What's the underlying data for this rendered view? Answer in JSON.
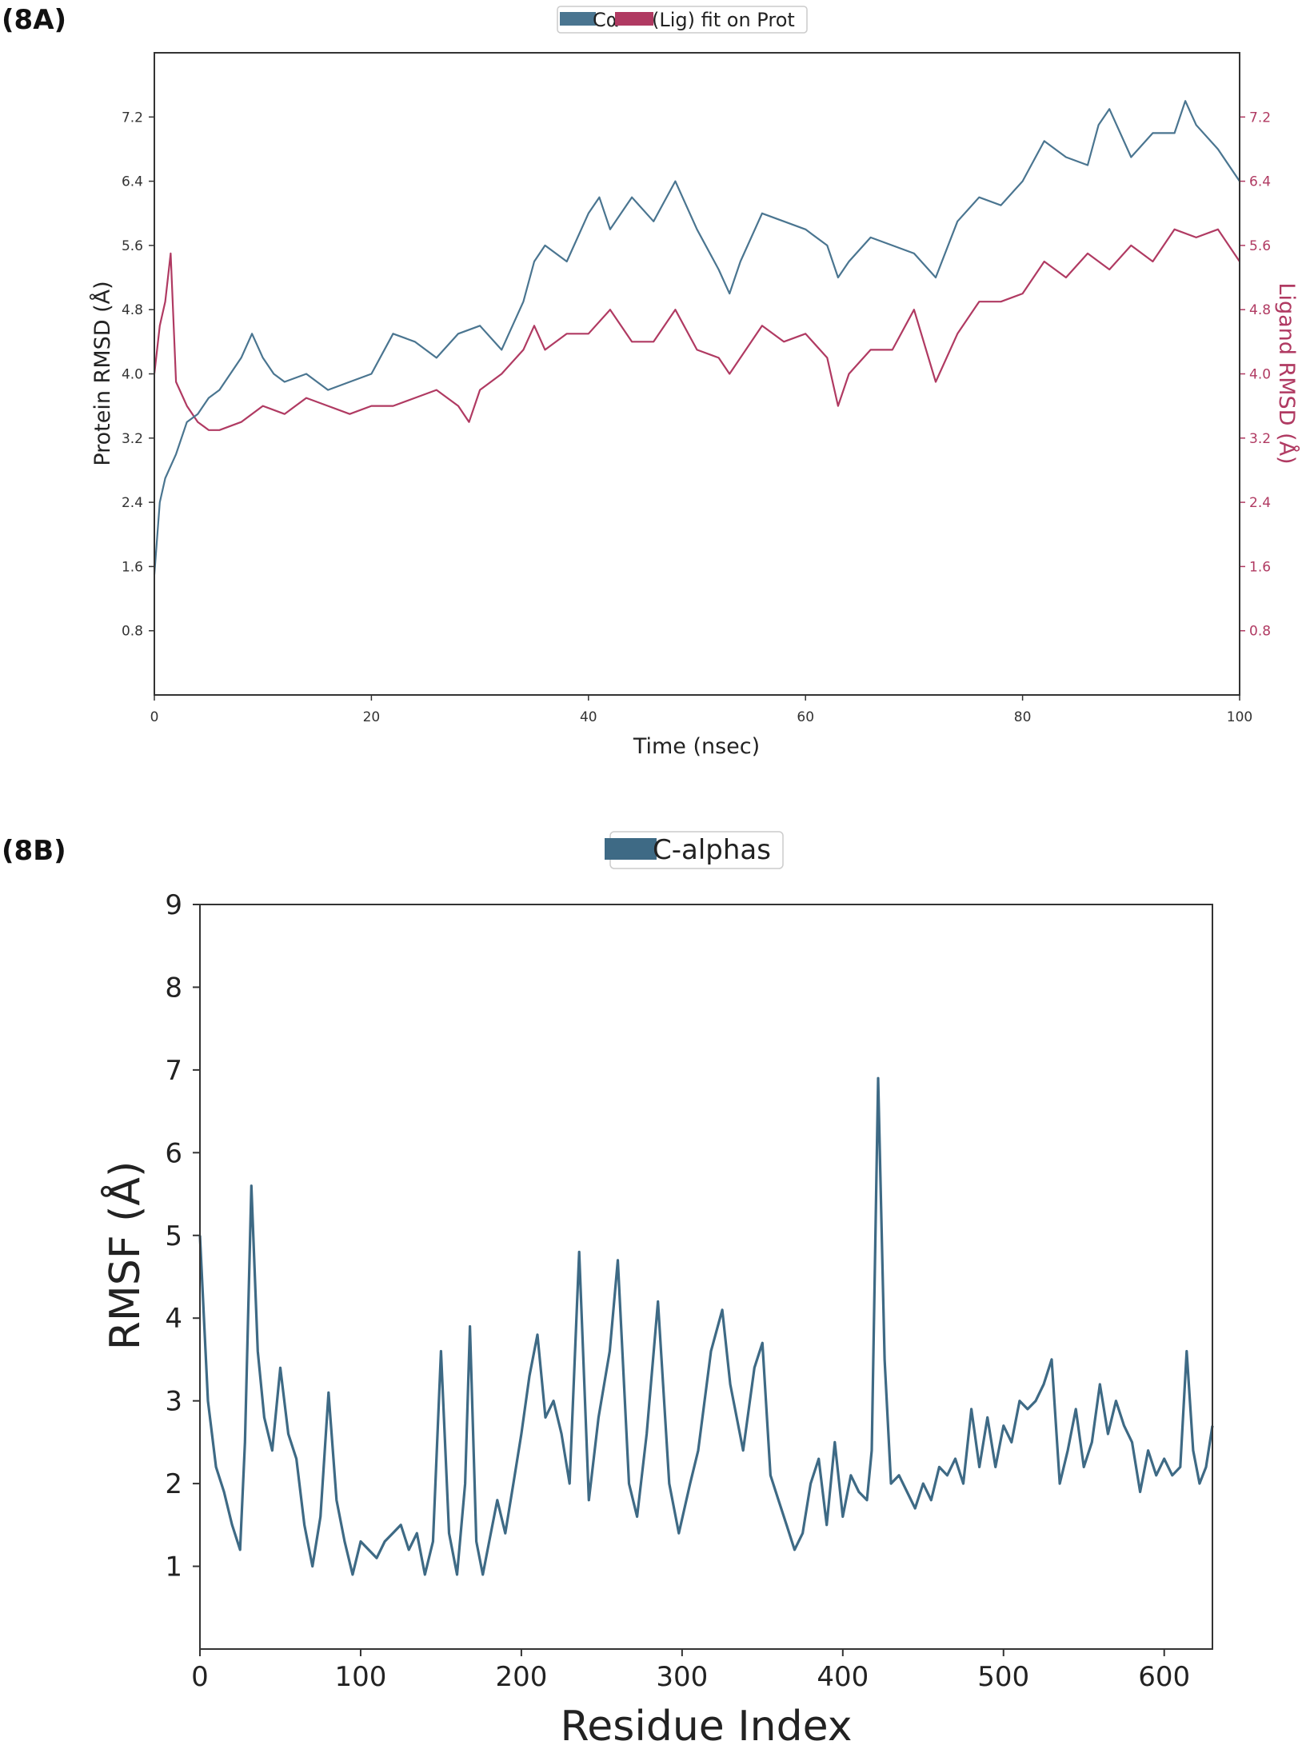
{
  "chart_data": [
    {
      "panel_label": "(8A)",
      "type": "line",
      "title": "",
      "legend": {
        "placement": "top-center",
        "entries": [
          {
            "name": "Cα",
            "color": "#4a7590"
          },
          {
            "name": "(Lig) fit on Prot",
            "color": "#b03a62"
          }
        ]
      },
      "xlabel": "Time (nsec)",
      "ylabel": "Protein RMSD (Å)",
      "ylabel_right": "Ligand RMSD (Å)",
      "xlim": [
        0,
        100
      ],
      "ylim": [
        0,
        8.0
      ],
      "xticks": [
        "0",
        "20",
        "40",
        "60",
        "80",
        "100"
      ],
      "xtick_values": [
        0,
        20,
        40,
        60,
        80,
        100
      ],
      "yticks": [
        "0.8",
        "1.6",
        "2.4",
        "3.2",
        "4.0",
        "4.8",
        "5.6",
        "6.4",
        "7.2"
      ],
      "ytick_values": [
        0.8,
        1.6,
        2.4,
        3.2,
        4.0,
        4.8,
        5.6,
        6.4,
        7.2
      ],
      "colors": {
        "protein": "#4a7590",
        "ligand": "#b03a62",
        "axis": "#333333"
      },
      "series": [
        {
          "name": "Protein Cα RMSD",
          "x": [
            0,
            0.5,
            1,
            2,
            3,
            4,
            5,
            6,
            8,
            9,
            10,
            11,
            12,
            14,
            16,
            18,
            20,
            22,
            24,
            26,
            28,
            30,
            32,
            34,
            35,
            36,
            38,
            40,
            41,
            42,
            44,
            46,
            48,
            50,
            52,
            53,
            54,
            56,
            58,
            60,
            62,
            63,
            64,
            66,
            68,
            70,
            72,
            74,
            76,
            78,
            80,
            82,
            84,
            86,
            87,
            88,
            90,
            92,
            94,
            95,
            96,
            98,
            100
          ],
          "y": [
            1.5,
            2.4,
            2.7,
            3.0,
            3.4,
            3.5,
            3.7,
            3.8,
            4.2,
            4.5,
            4.2,
            4.0,
            3.9,
            4.0,
            3.8,
            3.9,
            4.0,
            4.5,
            4.4,
            4.2,
            4.5,
            4.6,
            4.3,
            4.9,
            5.4,
            5.6,
            5.4,
            6.0,
            6.2,
            5.8,
            6.2,
            5.9,
            6.4,
            5.8,
            5.3,
            5.0,
            5.4,
            6.0,
            5.9,
            5.8,
            5.6,
            5.2,
            5.4,
            5.7,
            5.6,
            5.5,
            5.2,
            5.9,
            6.2,
            6.1,
            6.4,
            6.9,
            6.7,
            6.6,
            7.1,
            7.3,
            6.7,
            7.0,
            7.0,
            7.4,
            7.1,
            6.8,
            6.4
          ]
        },
        {
          "name": "Ligand RMSD",
          "x": [
            0,
            0.5,
            1,
            1.5,
            2,
            3,
            4,
            5,
            6,
            8,
            10,
            12,
            14,
            16,
            18,
            20,
            22,
            24,
            26,
            28,
            29,
            30,
            32,
            34,
            35,
            36,
            38,
            40,
            42,
            44,
            46,
            48,
            50,
            52,
            53,
            54,
            56,
            58,
            60,
            62,
            63,
            64,
            66,
            68,
            70,
            72,
            74,
            76,
            78,
            80,
            82,
            84,
            86,
            88,
            90,
            92,
            94,
            96,
            98,
            100
          ],
          "y": [
            4.0,
            4.6,
            4.9,
            5.5,
            3.9,
            3.6,
            3.4,
            3.3,
            3.3,
            3.4,
            3.6,
            3.5,
            3.7,
            3.6,
            3.5,
            3.6,
            3.6,
            3.7,
            3.8,
            3.6,
            3.4,
            3.8,
            4.0,
            4.3,
            4.6,
            4.3,
            4.5,
            4.5,
            4.8,
            4.4,
            4.4,
            4.8,
            4.3,
            4.2,
            4.0,
            4.2,
            4.6,
            4.4,
            4.5,
            4.2,
            3.6,
            4.0,
            4.3,
            4.3,
            4.8,
            3.9,
            4.5,
            4.9,
            4.9,
            5.0,
            5.4,
            5.2,
            5.5,
            5.3,
            5.6,
            5.4,
            5.8,
            5.7,
            5.8,
            5.4
          ]
        }
      ]
    },
    {
      "panel_label": "(8B)",
      "type": "line",
      "title": "",
      "legend": {
        "placement": "top-center",
        "entries": [
          {
            "name": "C-alphas",
            "color": "#3e6a85"
          }
        ]
      },
      "xlabel": "Residue Index",
      "ylabel": "RMSF (Å)",
      "xlim": [
        0,
        630
      ],
      "ylim": [
        0,
        9
      ],
      "xticks": [
        "0",
        "100",
        "200",
        "300",
        "400",
        "500",
        "600"
      ],
      "xtick_values": [
        0,
        100,
        200,
        300,
        400,
        500,
        600
      ],
      "yticks": [
        "1",
        "2",
        "3",
        "4",
        "5",
        "6",
        "7",
        "8",
        "9"
      ],
      "ytick_values": [
        1,
        2,
        3,
        4,
        5,
        6,
        7,
        8,
        9
      ],
      "colors": {
        "line": "#3e6a85",
        "axis": "#333333"
      },
      "series": [
        {
          "name": "C-alphas",
          "x": [
            0,
            5,
            10,
            15,
            20,
            25,
            28,
            32,
            36,
            40,
            45,
            50,
            55,
            60,
            65,
            70,
            75,
            80,
            85,
            90,
            95,
            100,
            105,
            110,
            115,
            120,
            125,
            130,
            135,
            140,
            145,
            150,
            155,
            160,
            165,
            168,
            172,
            176,
            180,
            185,
            190,
            195,
            200,
            205,
            210,
            215,
            220,
            225,
            230,
            236,
            242,
            248,
            255,
            260,
            267,
            272,
            278,
            285,
            292,
            298,
            305,
            310,
            318,
            325,
            330,
            338,
            345,
            350,
            355,
            360,
            365,
            370,
            375,
            380,
            385,
            390,
            395,
            400,
            405,
            410,
            415,
            418,
            422,
            426,
            430,
            435,
            440,
            445,
            450,
            455,
            460,
            465,
            470,
            475,
            480,
            485,
            490,
            495,
            500,
            505,
            510,
            515,
            520,
            525,
            530,
            535,
            540,
            545,
            550,
            555,
            560,
            565,
            570,
            575,
            580,
            585,
            590,
            595,
            600,
            605,
            610,
            614,
            618,
            622,
            626,
            630
          ],
          "y": [
            5.0,
            3.0,
            2.2,
            1.9,
            1.5,
            1.2,
            2.5,
            5.6,
            3.6,
            2.8,
            2.4,
            3.4,
            2.6,
            2.3,
            1.5,
            1.0,
            1.6,
            3.1,
            1.8,
            1.3,
            0.9,
            1.3,
            1.2,
            1.1,
            1.3,
            1.4,
            1.5,
            1.2,
            1.4,
            0.9,
            1.3,
            3.6,
            1.4,
            0.9,
            2.0,
            3.9,
            1.3,
            0.9,
            1.3,
            1.8,
            1.4,
            2.0,
            2.6,
            3.3,
            3.8,
            2.8,
            3.0,
            2.6,
            2.0,
            4.8,
            1.8,
            2.8,
            3.6,
            4.7,
            2.0,
            1.6,
            2.6,
            4.2,
            2.0,
            1.4,
            2.0,
            2.4,
            3.6,
            4.1,
            3.2,
            2.4,
            3.4,
            3.7,
            2.1,
            1.8,
            1.5,
            1.2,
            1.4,
            2.0,
            2.3,
            1.5,
            2.5,
            1.6,
            2.1,
            1.9,
            1.8,
            2.4,
            6.9,
            3.5,
            2.0,
            2.1,
            1.9,
            1.7,
            2.0,
            1.8,
            2.2,
            2.1,
            2.3,
            2.0,
            2.9,
            2.2,
            2.8,
            2.2,
            2.7,
            2.5,
            3.0,
            2.9,
            3.0,
            3.2,
            3.5,
            2.0,
            2.4,
            2.9,
            2.2,
            2.5,
            3.2,
            2.6,
            3.0,
            2.7,
            2.5,
            1.9,
            2.4,
            2.1,
            2.3,
            2.1,
            2.2,
            3.6,
            2.4,
            2.0,
            2.2,
            2.7
          ]
        }
      ]
    }
  ]
}
